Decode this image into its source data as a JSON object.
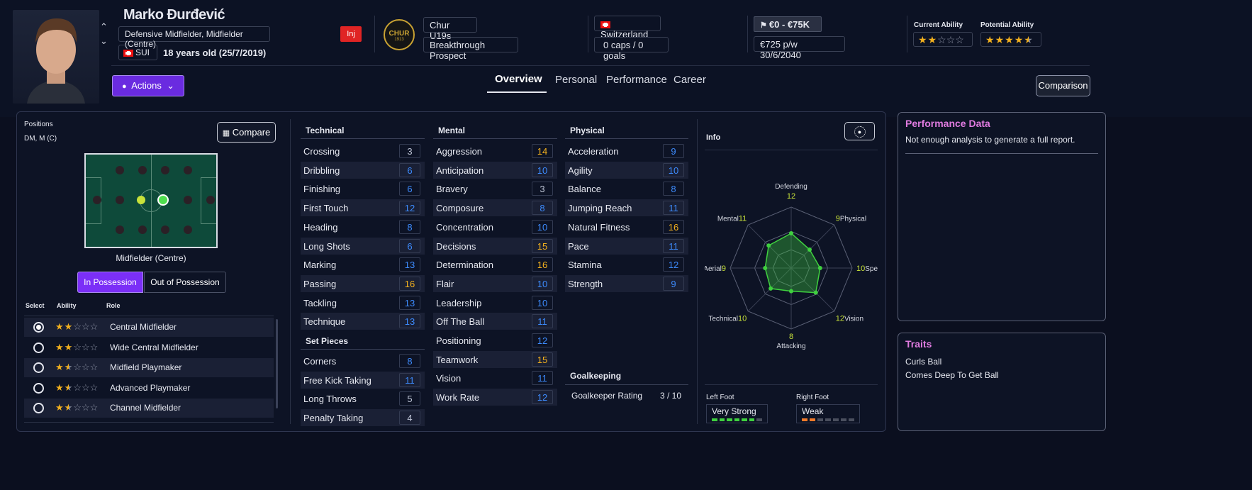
{
  "player": {
    "name": "Marko Đurđević",
    "positions": "Defensive Midfielder, Midfielder (Centre)",
    "injury_badge": "Inj",
    "nation_code": "SUI",
    "age_text": "18 years old (25/7/2019)"
  },
  "club": {
    "name": "Chur U19s",
    "status": "Breakthrough Prospect",
    "logo_text": "CHUR",
    "logo_year": "1913"
  },
  "nation": {
    "name": "Switzerland",
    "caps": "0 caps / 0 goals"
  },
  "value": {
    "range": "€0 - €75K",
    "wage": "€725 p/w 30/6/2040"
  },
  "ability": {
    "current_label": "Current Ability",
    "potential_label": "Potential Ability",
    "current_stars": 2,
    "potential_stars": 4.5
  },
  "actions_label": "Actions",
  "tabs": [
    "Overview",
    "Personal",
    "Performance",
    "Career"
  ],
  "comparison_label": "Comparison",
  "left": {
    "positions_title": "Positions",
    "positions_value": "DM, M (C)",
    "compare_label": "Compare",
    "pitch_caption": "Midfielder (Centre)",
    "in_possession": "In Possession",
    "out_possession": "Out of Possession",
    "col_select": "Select",
    "col_ability": "Ability",
    "col_role": "Role",
    "roles": [
      {
        "name": "Central Midfielder",
        "stars": 2,
        "selected": true
      },
      {
        "name": "Wide Central Midfielder",
        "stars": 2,
        "selected": false
      },
      {
        "name": "Midfield Playmaker",
        "stars": 1.5,
        "selected": false
      },
      {
        "name": "Advanced Playmaker",
        "stars": 1.5,
        "selected": false
      },
      {
        "name": "Channel Midfielder",
        "stars": 1.5,
        "selected": false
      }
    ]
  },
  "technical": {
    "title": "Technical",
    "attrs": [
      [
        "Crossing",
        3
      ],
      [
        "Dribbling",
        6
      ],
      [
        "Finishing",
        6
      ],
      [
        "First Touch",
        12
      ],
      [
        "Heading",
        8
      ],
      [
        "Long Shots",
        6
      ],
      [
        "Marking",
        13
      ],
      [
        "Passing",
        16
      ],
      [
        "Tackling",
        13
      ],
      [
        "Technique",
        13
      ]
    ]
  },
  "set_pieces": {
    "title": "Set Pieces",
    "attrs": [
      [
        "Corners",
        8
      ],
      [
        "Free Kick Taking",
        11
      ],
      [
        "Long Throws",
        5
      ],
      [
        "Penalty Taking",
        4
      ]
    ]
  },
  "mental": {
    "title": "Mental",
    "attrs": [
      [
        "Aggression",
        14
      ],
      [
        "Anticipation",
        10
      ],
      [
        "Bravery",
        3
      ],
      [
        "Composure",
        8
      ],
      [
        "Concentration",
        10
      ],
      [
        "Decisions",
        15
      ],
      [
        "Determination",
        16
      ],
      [
        "Flair",
        10
      ],
      [
        "Leadership",
        10
      ],
      [
        "Off The Ball",
        11
      ],
      [
        "Positioning",
        12
      ],
      [
        "Teamwork",
        15
      ],
      [
        "Vision",
        11
      ],
      [
        "Work Rate",
        12
      ]
    ]
  },
  "physical": {
    "title": "Physical",
    "attrs": [
      [
        "Acceleration",
        9
      ],
      [
        "Agility",
        10
      ],
      [
        "Balance",
        8
      ],
      [
        "Jumping Reach",
        11
      ],
      [
        "Natural Fitness",
        16
      ],
      [
        "Pace",
        11
      ],
      [
        "Stamina",
        12
      ],
      [
        "Strength",
        9
      ]
    ]
  },
  "goalkeeping": {
    "title": "Goalkeeping",
    "label": "Goalkeeper Rating",
    "value": "3 / 10"
  },
  "info": {
    "title": "Info",
    "radar": [
      {
        "label": "Defending",
        "value": 12
      },
      {
        "label": "Physical",
        "value": 9
      },
      {
        "label": "Speed",
        "value": 10
      },
      {
        "label": "Vision",
        "value": 12
      },
      {
        "label": "Attacking",
        "value": 8
      },
      {
        "label": "Technical",
        "value": 10
      },
      {
        "label": "Aerial",
        "value": 9
      },
      {
        "label": "Mental",
        "value": 11
      }
    ],
    "left_foot_label": "Left Foot",
    "left_foot": "Very Strong",
    "left_foot_level": 6,
    "right_foot_label": "Right Foot",
    "right_foot": "Weak",
    "right_foot_level": 2
  },
  "performance": {
    "title": "Performance Data",
    "text": "Not enough analysis to generate a full report."
  },
  "traits": {
    "title": "Traits",
    "items": [
      "Curls Ball",
      "Comes Deep To Get Ball"
    ]
  },
  "colors": {
    "accent": "#7b2ff7",
    "low": "#bcc3d4",
    "mid": "#3d8bfd",
    "high": "#f2b01e",
    "radar": "#3fd03f",
    "panel_title": "#e07be0"
  }
}
